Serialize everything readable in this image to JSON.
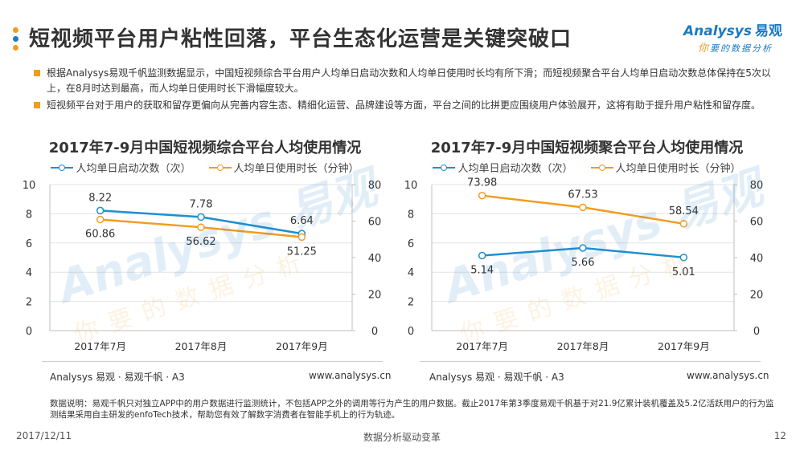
{
  "header": {
    "title": "短视频平台用户粘性回落，平台生态化运营是关键突破口",
    "dot_colors": [
      "#f29c1f",
      "#1a7bc4",
      "#f29c1f"
    ]
  },
  "logo": {
    "brand_en": "Analysys",
    "brand_cn": "易观",
    "slogan_first": "你",
    "slogan_rest": "要的数据分析"
  },
  "bullets": [
    "根据Analysys易观千帆监测数据显示，中国短视频综合平台用户人均单日启动次数和人均单日使用时长均有所下滑；而短视频聚合平台人均单日启动次数总体保持在5次以上，在8月时达到最高，而人均单日使用时长下滑幅度较大。",
    "短视频平台对于用户的获取和留存更偏向从完善内容生态、精细化运营、品牌建设等方面，平台之间的比拼更应围绕用户体验展开，这将有助于提升用户粘性和留存度。"
  ],
  "colors": {
    "blue": "#1f8fd1",
    "orange": "#f29c1f",
    "bullet": "#f29c1f"
  },
  "watermark": {
    "en": "Analysys 易观",
    "cn": "你要的数据分析"
  },
  "chart_data": [
    {
      "type": "line",
      "title": "2017年7-9月中国短视频综合平台人均使用情况",
      "categories": [
        "2017年7月",
        "2017年8月",
        "2017年9月"
      ],
      "series": [
        {
          "name": "人均单日启动次数（次）",
          "axis": "left",
          "color": "#1f8fd1",
          "values": [
            8.22,
            7.78,
            6.64
          ],
          "label_position": "above"
        },
        {
          "name": "人均单日使用时长（分钟）",
          "axis": "right",
          "color": "#f29c1f",
          "values": [
            60.86,
            56.62,
            51.25
          ],
          "label_position": "below"
        }
      ],
      "y_left": {
        "min": 0,
        "max": 10,
        "ticks": [
          0,
          2,
          4,
          6,
          8,
          10
        ]
      },
      "y_right": {
        "min": 0,
        "max": 80,
        "ticks": [
          0,
          20,
          40,
          60,
          80
        ]
      },
      "grid": true,
      "legend": "top"
    },
    {
      "type": "line",
      "title": "2017年7-9月中国短视频聚合平台人均使用情况",
      "categories": [
        "2017年7月",
        "2017年8月",
        "2017年9月"
      ],
      "series": [
        {
          "name": "人均单日启动次数（次）",
          "axis": "left",
          "color": "#1f8fd1",
          "values": [
            5.14,
            5.66,
            5.01
          ],
          "label_position": "below"
        },
        {
          "name": "人均单日使用时长（分钟）",
          "axis": "right",
          "color": "#f29c1f",
          "values": [
            73.98,
            67.53,
            58.54
          ],
          "label_position": "above"
        }
      ],
      "y_left": {
        "min": 0,
        "max": 10,
        "ticks": [
          0,
          2,
          4,
          6,
          8,
          10
        ]
      },
      "y_right": {
        "min": 0,
        "max": 80,
        "ticks": [
          0,
          20,
          40,
          60,
          80
        ]
      },
      "grid": true,
      "legend": "top"
    }
  ],
  "sources": [
    {
      "left": "Analysys 易观 · 易观千帆 · A3",
      "right": "www.analysys.cn"
    },
    {
      "left": "Analysys 易观 · 易观千帆 · A3",
      "right": "www.analysys.cn"
    }
  ],
  "note": "数据说明：易观千帆只对独立APP中的用户数据进行监测统计，不包括APP之外的调用等行为产生的用户数据。截止2017年第3季度易观千帆基于对21.9亿累计装机覆盖及5.2亿活跃用户的行为监测结果采用自主研发的enfoTech技术，帮助您有效了解数字消费者在智能手机上的行为轨迹。",
  "footer": {
    "date": "2017/12/11",
    "center": "数据分析驱动变革",
    "page": "12"
  }
}
